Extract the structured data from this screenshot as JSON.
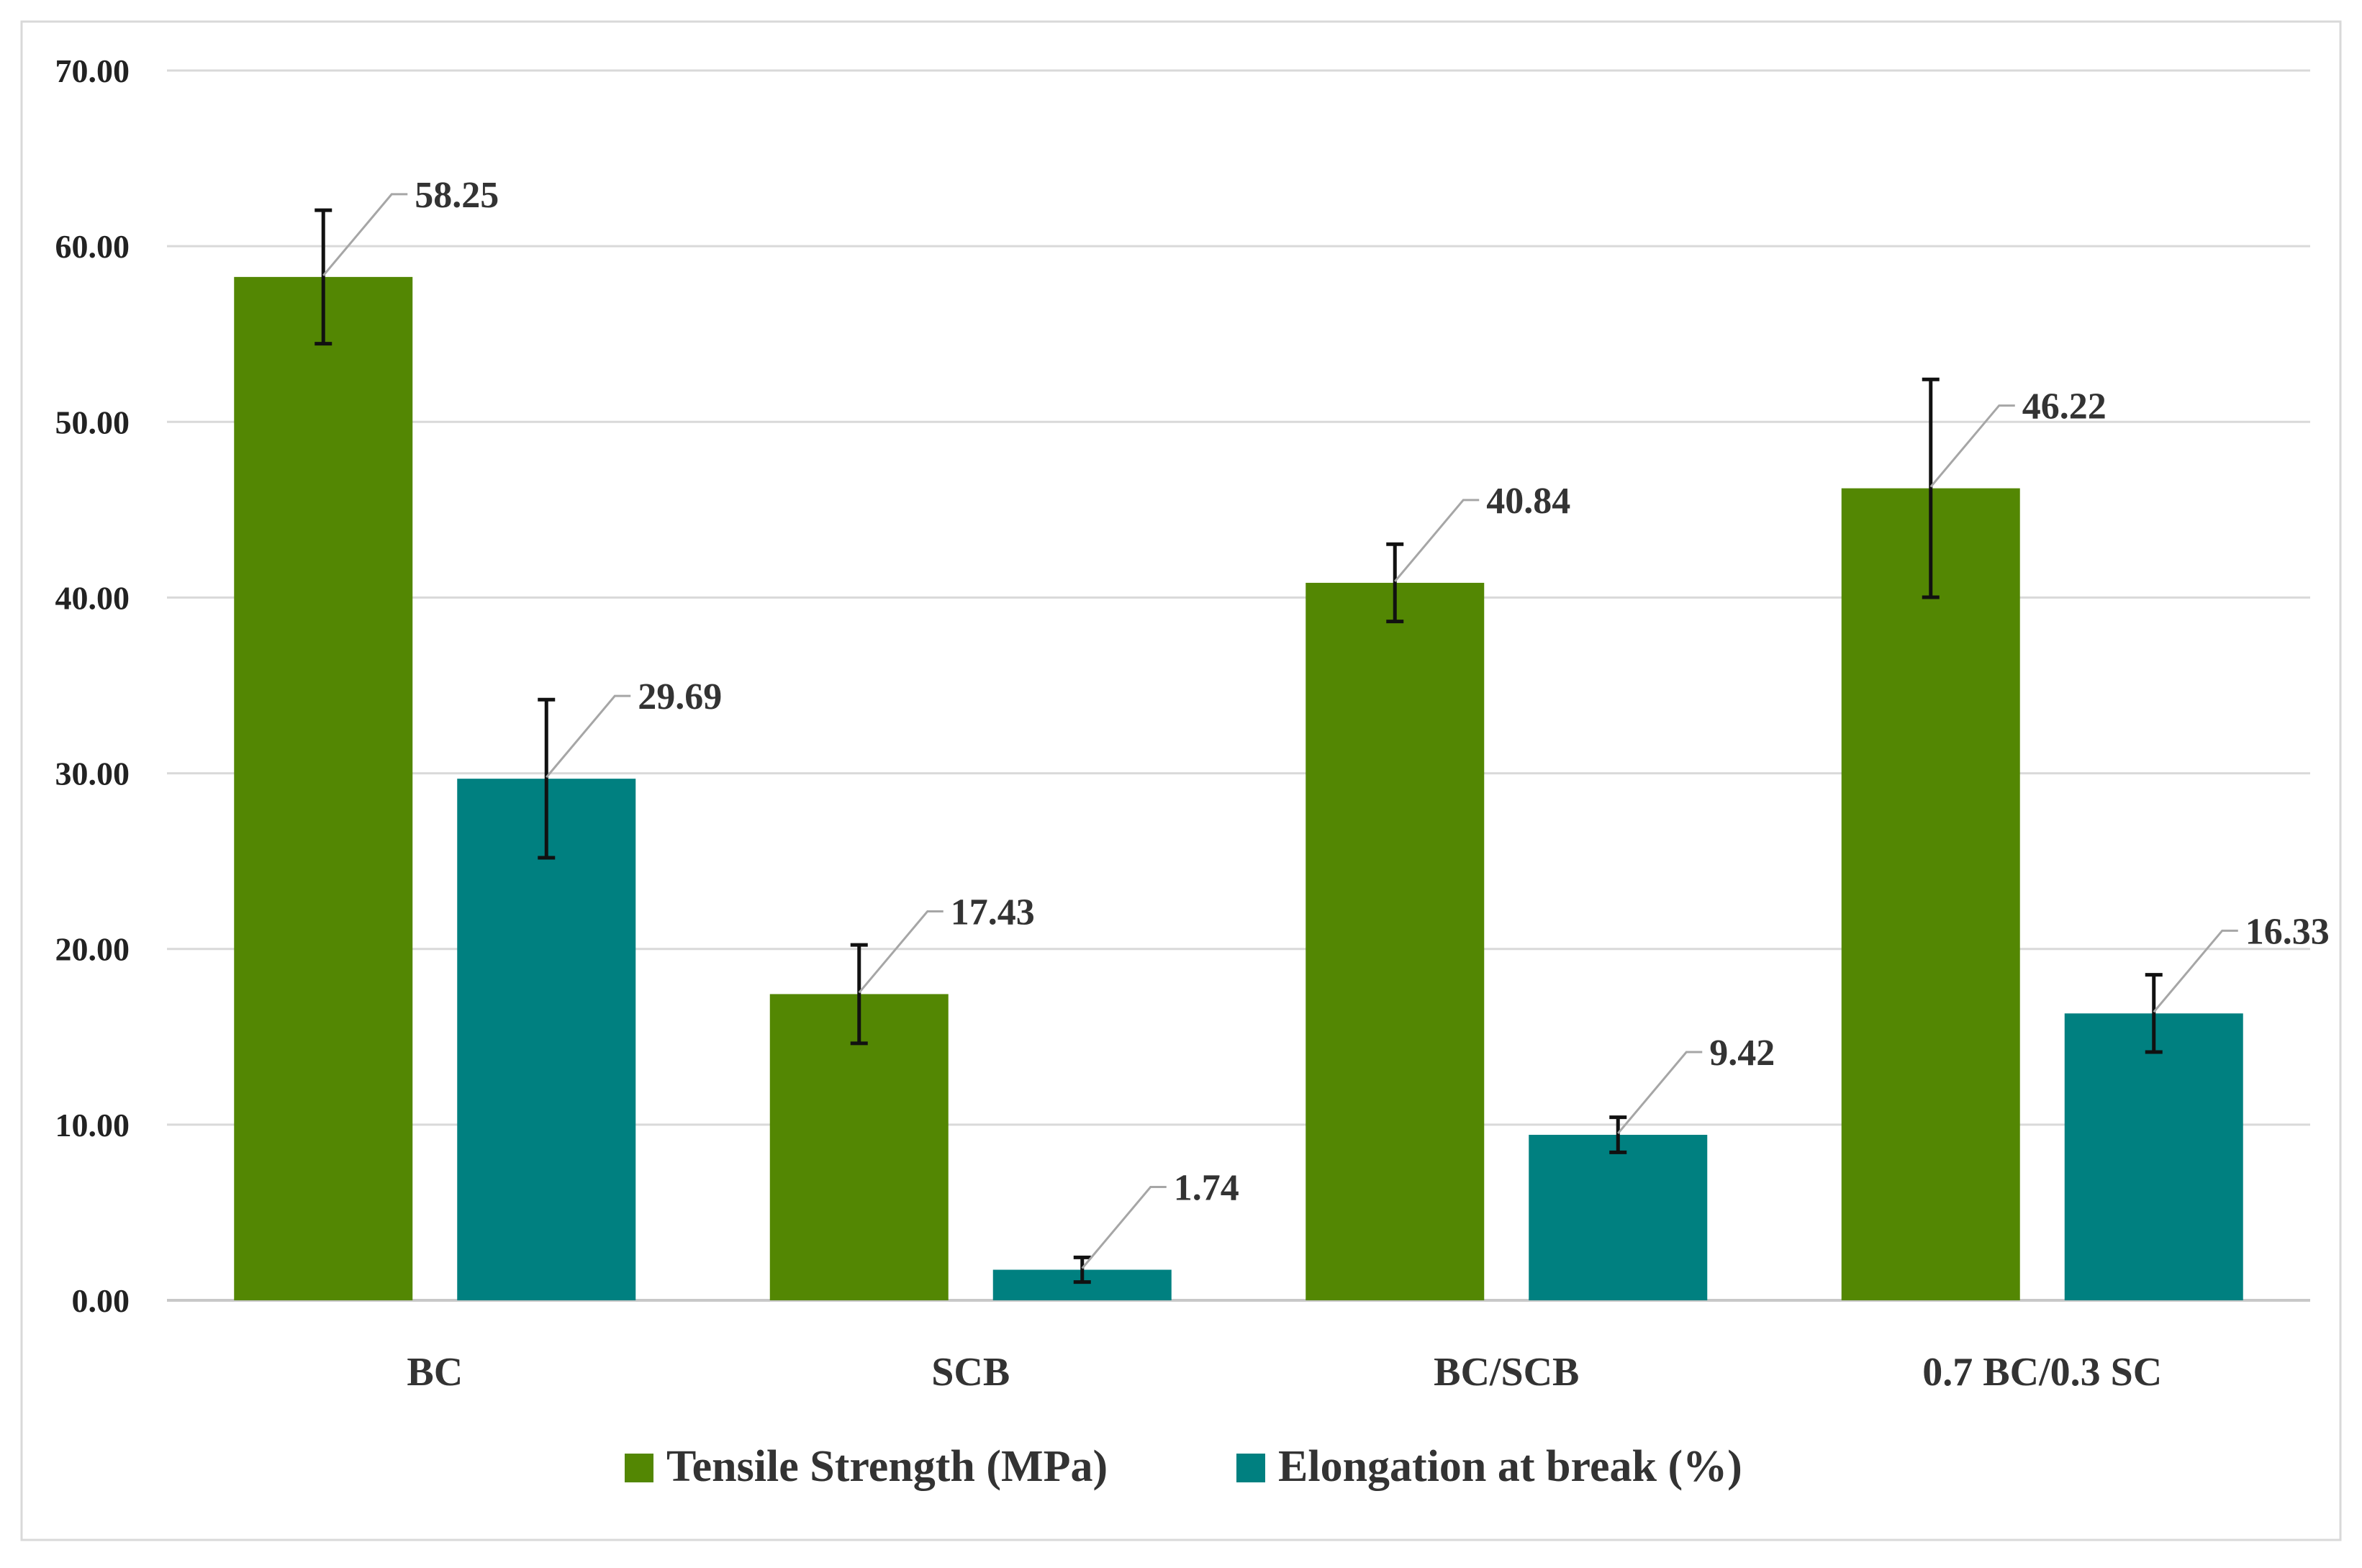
{
  "chart_data": {
    "type": "bar",
    "title": "",
    "xlabel": "",
    "ylabel": "",
    "ylim": [
      0,
      70
    ],
    "ytick_step": 10,
    "ytick_decimals": 2,
    "grid": true,
    "legend_position": "bottom",
    "categories": [
      "BC",
      "SCB",
      "BC/SCB",
      "0.7 BC/0.3 SC"
    ],
    "series": [
      {
        "name": "Tensile Strength (MPa)",
        "color": "#538703",
        "values": [
          58.25,
          17.43,
          40.84,
          46.22
        ],
        "labels": [
          "58.25",
          "17.43",
          "40.84",
          "46.22"
        ],
        "errors": [
          3.8,
          2.8,
          2.2,
          6.2
        ]
      },
      {
        "name": "Elongation at break (%)",
        "color": "#008080",
        "values": [
          29.69,
          1.74,
          9.42,
          16.33
        ],
        "labels": [
          "29.69",
          "1.74",
          "9.42",
          "16.33"
        ],
        "errors": [
          4.5,
          0.7,
          1.0,
          2.2
        ]
      }
    ]
  }
}
